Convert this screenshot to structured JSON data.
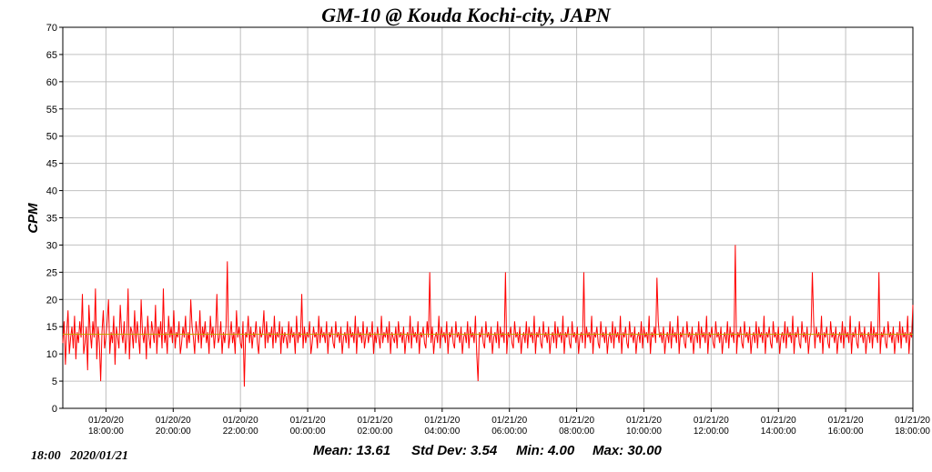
{
  "chart_data": {
    "type": "line",
    "title": "GM-10 @ Kouda Kochi-city, JAPN",
    "xlabel": "",
    "ylabel": "CPM",
    "ylim": [
      0,
      70
    ],
    "yticks": [
      0,
      5,
      10,
      15,
      20,
      25,
      30,
      35,
      40,
      45,
      50,
      55,
      60,
      65,
      70
    ],
    "xlim": [
      "2020-01-20 16:43",
      "2020-01-21 18:00"
    ],
    "xticks": [
      {
        "date": "01/20/20",
        "time": "18:00:00"
      },
      {
        "date": "01/20/20",
        "time": "20:00:00"
      },
      {
        "date": "01/20/20",
        "time": "22:00:00"
      },
      {
        "date": "01/21/20",
        "time": "00:00:00"
      },
      {
        "date": "01/21/20",
        "time": "02:00:00"
      },
      {
        "date": "01/21/20",
        "time": "04:00:00"
      },
      {
        "date": "01/21/20",
        "time": "06:00:00"
      },
      {
        "date": "01/21/20",
        "time": "08:00:00"
      },
      {
        "date": "01/21/20",
        "time": "10:00:00"
      },
      {
        "date": "01/21/20",
        "time": "12:00:00"
      },
      {
        "date": "01/21/20",
        "time": "14:00:00"
      },
      {
        "date": "01/21/20",
        "time": "16:00:00"
      },
      {
        "date": "01/21/20",
        "time": "18:00:00"
      }
    ],
    "grid": true,
    "series": [
      {
        "name": "",
        "color": "#ff0000",
        "values": [
          12,
          16,
          8,
          14,
          18,
          10,
          13,
          15,
          11,
          17,
          9,
          14,
          12,
          16,
          13,
          21,
          10,
          12,
          15,
          7,
          19,
          14,
          11,
          16,
          13,
          22,
          9,
          15,
          12,
          5,
          14,
          18,
          11,
          13,
          16,
          20,
          10,
          14,
          12,
          17,
          8,
          15,
          13,
          11,
          19,
          14,
          12,
          16,
          10,
          13,
          22,
          9,
          15,
          14,
          11,
          18,
          12,
          16,
          13,
          10,
          20,
          14,
          12,
          15,
          9,
          17,
          13,
          11,
          16,
          14,
          12,
          19,
          10,
          15,
          13,
          16,
          11,
          22,
          12,
          14,
          10,
          17,
          13,
          15,
          12,
          18,
          11,
          14,
          13,
          16,
          10,
          12,
          15,
          13,
          17,
          11,
          14,
          12,
          20,
          15,
          13,
          10,
          16,
          14,
          12,
          18,
          11,
          15,
          13,
          16,
          12,
          14,
          10,
          17,
          13,
          15,
          11,
          14,
          21,
          12,
          13,
          16,
          10,
          14,
          12,
          15,
          27,
          11,
          13,
          16,
          12,
          14,
          10,
          18,
          13,
          15,
          12,
          11,
          16,
          4,
          14,
          13,
          17,
          12,
          15,
          11,
          14,
          13,
          16,
          12,
          10,
          15,
          13,
          14,
          18,
          11,
          16,
          12,
          14,
          13,
          15,
          11,
          17,
          12,
          14,
          13,
          16,
          10,
          15,
          12,
          14,
          13,
          11,
          16,
          12,
          15,
          13,
          14,
          10,
          17,
          12,
          14,
          13,
          21,
          11,
          15,
          12,
          14,
          13,
          16,
          10,
          12,
          15,
          13,
          14,
          11,
          17,
          12,
          15,
          13,
          14,
          12,
          16,
          10,
          14,
          13,
          15,
          12,
          11,
          16,
          13,
          14,
          12,
          15,
          10,
          13,
          14,
          12,
          16,
          11,
          15,
          13,
          14,
          12,
          17,
          10,
          15,
          13,
          14,
          12,
          16,
          11,
          13,
          15,
          12,
          14,
          13,
          16,
          10,
          14,
          12,
          15,
          13,
          11,
          17,
          12,
          14,
          13,
          15,
          12,
          16,
          10,
          14,
          13,
          12,
          15,
          11,
          16,
          13,
          14,
          12,
          15,
          10,
          13,
          14,
          12,
          17,
          11,
          15,
          13,
          14,
          12,
          16,
          10,
          14,
          13,
          15,
          12,
          11,
          16,
          13,
          25,
          12,
          15,
          10,
          13,
          14,
          12,
          17,
          11,
          15,
          13,
          14,
          12,
          16,
          10,
          14,
          13,
          15,
          12,
          11,
          16,
          13,
          14,
          12,
          15,
          10,
          13,
          14,
          12,
          16,
          11,
          15,
          13,
          14,
          12,
          17,
          10,
          5,
          14,
          13,
          15,
          12,
          11,
          16,
          13,
          14,
          12,
          15,
          10,
          13,
          14,
          12,
          16,
          11,
          15,
          13,
          14,
          12,
          25,
          10,
          14,
          13,
          15,
          12,
          11,
          16,
          13,
          14,
          12,
          15,
          10,
          13,
          14,
          12,
          16,
          11,
          15,
          13,
          14,
          12,
          17,
          10,
          14,
          13,
          15,
          12,
          11,
          16,
          13,
          14,
          12,
          15,
          10,
          13,
          14,
          12,
          16,
          11,
          15,
          13,
          14,
          12,
          17,
          10,
          14,
          13,
          15,
          12,
          11,
          16,
          13,
          14,
          12,
          15,
          10,
          13,
          14,
          12,
          25,
          11,
          15,
          13,
          14,
          12,
          17,
          10,
          14,
          13,
          15,
          12,
          11,
          16,
          13,
          14,
          12,
          15,
          10,
          13,
          14,
          12,
          16,
          11,
          15,
          13,
          14,
          12,
          17,
          10,
          14,
          13,
          15,
          12,
          11,
          16,
          13,
          14,
          12,
          15,
          10,
          13,
          14,
          12,
          16,
          11,
          15,
          13,
          14,
          12,
          17,
          10,
          14,
          13,
          15,
          12,
          24,
          16,
          13,
          14,
          12,
          15,
          10,
          13,
          14,
          12,
          16,
          11,
          15,
          13,
          14,
          12,
          17,
          10,
          14,
          13,
          15,
          12,
          11,
          16,
          13,
          14,
          12,
          15,
          10,
          13,
          14,
          12,
          16,
          11,
          15,
          13,
          14,
          12,
          17,
          10,
          14,
          13,
          15,
          12,
          11,
          16,
          13,
          14,
          12,
          15,
          10,
          13,
          14,
          12,
          16,
          11,
          15,
          13,
          14,
          12,
          30,
          10,
          14,
          13,
          15,
          12,
          11,
          16,
          13,
          14,
          12,
          15,
          10,
          13,
          14,
          12,
          16,
          11,
          15,
          13,
          14,
          12,
          17,
          10,
          14,
          13,
          15,
          12,
          11,
          16,
          13,
          14,
          12,
          15,
          10,
          13,
          14,
          12,
          16,
          11,
          15,
          13,
          14,
          12,
          17,
          10,
          14,
          13,
          15,
          12,
          11,
          16,
          13,
          14,
          12,
          15,
          10,
          13,
          14,
          25,
          16,
          11,
          15,
          13,
          14,
          12,
          17,
          10,
          14,
          13,
          15,
          12,
          11,
          16,
          13,
          14,
          12,
          15,
          10,
          13,
          14,
          12,
          16,
          11,
          15,
          13,
          14,
          12,
          17,
          10,
          14,
          13,
          15,
          12,
          11,
          16,
          13,
          14,
          12,
          15,
          10,
          13,
          14,
          12,
          16,
          11,
          15,
          13,
          14,
          12,
          25,
          10,
          14,
          13,
          15,
          12,
          11,
          16,
          13,
          14,
          12,
          15,
          10,
          13,
          14,
          12,
          16,
          11,
          15,
          13,
          14,
          12,
          17,
          10,
          14,
          13,
          19
        ]
      }
    ],
    "mean_line": {
      "value": 13.61,
      "color": "#c8a000"
    }
  },
  "stats": {
    "mean": "Mean: 13.61",
    "std": "Std Dev: 3.54",
    "min": "Min: 4.00",
    "max": "Max: 30.00"
  },
  "timestamp": "18:00   2020/01/21"
}
